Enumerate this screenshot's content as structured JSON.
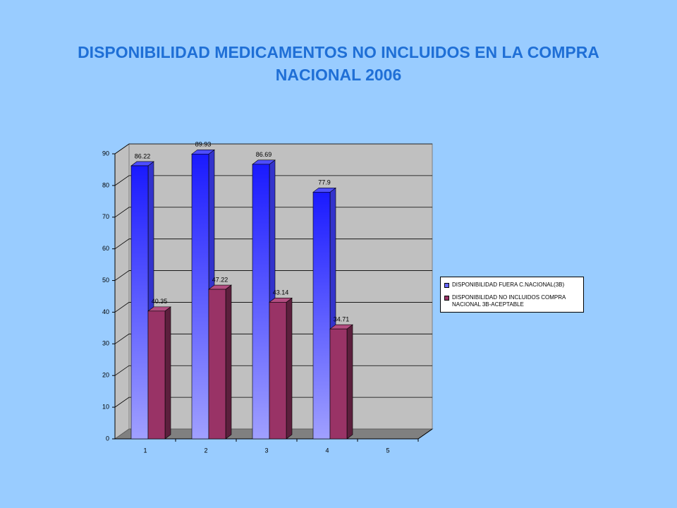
{
  "chart_data": {
    "type": "bar3d",
    "title": "DISPONIBILIDAD MEDICAMENTOS NO INCLUIDOS EN LA COMPRA NACIONAL 2006",
    "categories": [
      1,
      2,
      3,
      4,
      5
    ],
    "series": [
      {
        "name": "DISPONIBILIDAD FUERA C.NACIONAL(3B)",
        "color": "#1a1aff",
        "values": [
          86.22,
          89.93,
          86.69,
          77.9,
          null
        ]
      },
      {
        "name": "DISPONIBILIDAD NO INCLUIDOS COMPRA NACIONAL 3B-ACEPTABLE",
        "color": "#993366",
        "values": [
          40.35,
          47.22,
          43.14,
          34.71,
          null
        ]
      }
    ],
    "ylim": [
      0,
      90
    ],
    "yticks": [
      0,
      10,
      20,
      30,
      40,
      50,
      60,
      70,
      80,
      90
    ],
    "grid": true,
    "legend": "right"
  }
}
